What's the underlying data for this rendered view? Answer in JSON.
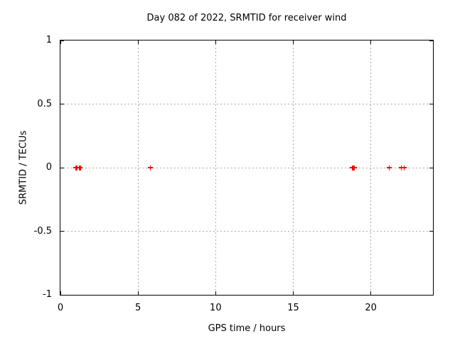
{
  "chart_data": {
    "type": "scatter",
    "title": "Day 082 of 2022, SRMTID for receiver wind",
    "xlabel": "GPS time / hours",
    "ylabel": "SRMTID / TECUs",
    "xlim": [
      0,
      24
    ],
    "ylim": [
      -1,
      1
    ],
    "x_ticks": [
      0,
      5,
      10,
      15,
      20
    ],
    "y_ticks": [
      1,
      0.5,
      0,
      -0.5,
      -1
    ],
    "grid": true,
    "legend": "none",
    "marker": "plus",
    "colors": {
      "marker": "#ff0000",
      "grid": "#aaaaaa",
      "axis": "#000000",
      "background": "#ffffff"
    },
    "series": [
      {
        "name": "SRMTID",
        "x": [
          1.0,
          1.05,
          1.23,
          1.28,
          5.79,
          18.8,
          18.85,
          18.9,
          18.95,
          21.18,
          21.96,
          22.14
        ],
        "y": [
          0,
          0,
          0,
          0,
          0,
          0,
          0,
          0,
          0,
          0,
          0,
          0
        ]
      }
    ]
  }
}
